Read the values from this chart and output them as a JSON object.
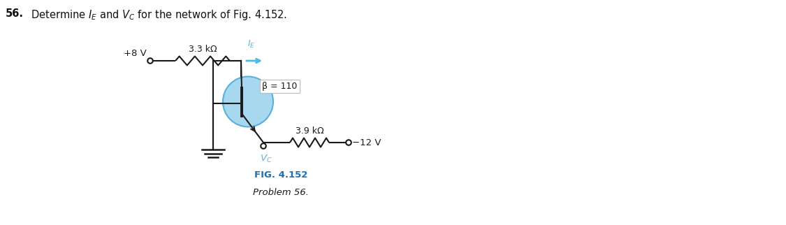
{
  "title_num": "56.",
  "title_text": "  Determine $I_E$ and $V_C$ for the network of Fig. 4.152.",
  "fig_label": "FIG. 4.152",
  "fig_sublabel": "Problem 56.",
  "vplus": "+8 V",
  "vminus": "−12 V",
  "r1_label": "3.3 kΩ",
  "r2_label": "3.9 kΩ",
  "beta_label": "β = 110",
  "ie_label": "$I_E$",
  "vc_label": "$V_C$",
  "bg_color": "#ffffff",
  "wire_color": "#1a1a1a",
  "blue_color": "#4db8e8",
  "transistor_circle_color": "#a8d8f0",
  "transistor_circle_edge": "#5ab0d8",
  "fig_label_color": "#1a6fb5",
  "figsize": [
    11.25,
    3.22
  ],
  "dpi": 100,
  "xlim": [
    0,
    11.25
  ],
  "ylim": [
    0,
    3.22
  ]
}
